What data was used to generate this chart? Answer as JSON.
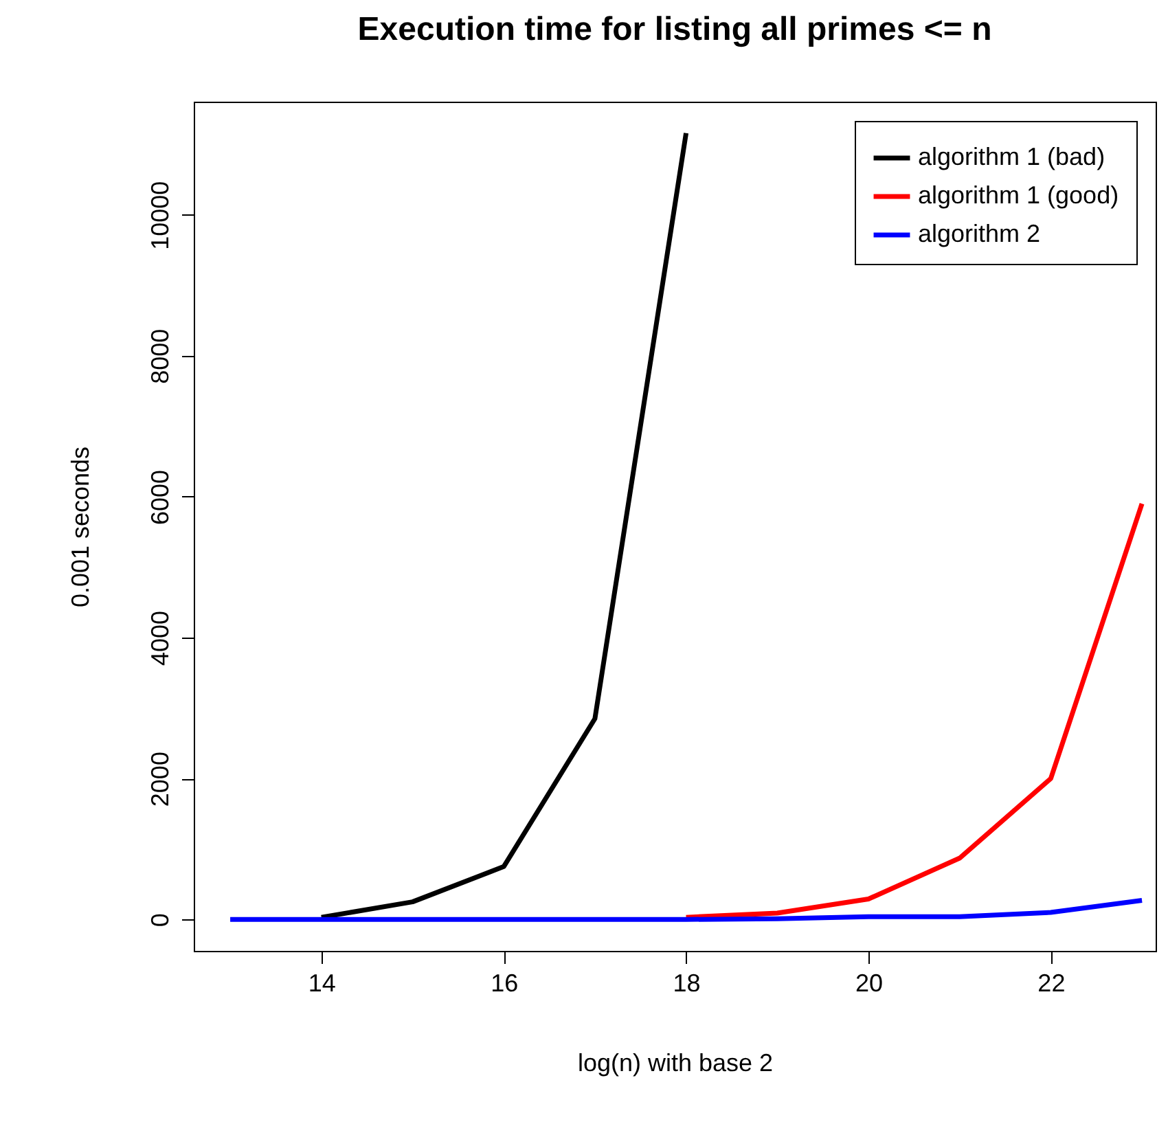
{
  "chart_data": {
    "type": "line",
    "title": "Execution time for listing all primes <= n",
    "xlabel": "log(n) with base 2",
    "ylabel": "0.001 seconds",
    "xlim": [
      12.6,
      23.15
    ],
    "xticks": [
      14,
      16,
      18,
      20,
      22
    ],
    "ylim": [
      -446,
      11606
    ],
    "yticks": [
      0,
      2000,
      4000,
      6000,
      8000,
      10000
    ],
    "grid": false,
    "legend": "top right",
    "line_style": "solid",
    "marker": "none",
    "series": [
      {
        "name": "algorithm 1 (bad)",
        "color": "#000000",
        "x": [
          14,
          15,
          16,
          17,
          18
        ],
        "values": [
          30,
          250,
          750,
          2850,
          11160
        ]
      },
      {
        "name": "algorithm 1 (good)",
        "color": "#ff0000",
        "x": [
          18,
          19,
          20,
          21,
          22,
          23
        ],
        "values": [
          30,
          90,
          290,
          870,
          2000,
          5900
        ]
      },
      {
        "name": "algorithm 2",
        "color": "#0000ff",
        "x": [
          13,
          14,
          15,
          16,
          17,
          18,
          19,
          20,
          21,
          22,
          23
        ],
        "values": [
          0,
          0,
          0,
          0,
          0,
          0,
          10,
          40,
          40,
          100,
          270
        ]
      }
    ]
  }
}
